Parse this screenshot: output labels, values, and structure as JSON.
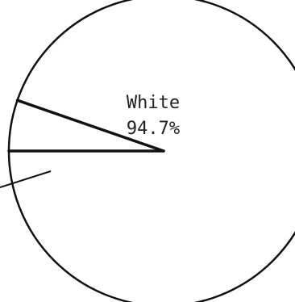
{
  "chart_data": {
    "type": "pie",
    "slices": [
      {
        "label": "White",
        "value": 94.7,
        "value_label": "94.7%"
      },
      {
        "label": "",
        "value": 5.3,
        "value_label": ""
      }
    ],
    "colors": {
      "stroke": "#111111",
      "fill": "#ffffff",
      "text": "#222222"
    }
  }
}
